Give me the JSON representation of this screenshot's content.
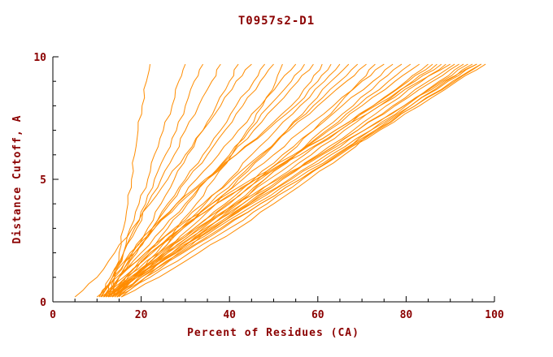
{
  "colors": {
    "curve": "#ff8c00",
    "text": "#8b0000",
    "axis": "#000000",
    "background": "#ffffff"
  },
  "chart_data": {
    "type": "line",
    "title": "T0957s2-D1",
    "xlabel": "Percent of Residues (CA)",
    "ylabel": "Distance Cutoff, A",
    "xlim": [
      0,
      100
    ],
    "ylim": [
      0,
      10
    ],
    "x_major_ticks": [
      0,
      20,
      40,
      60,
      80,
      100
    ],
    "y_major_ticks": [
      0,
      5,
      10
    ],
    "x_minor_step": 5,
    "y_minor_step": 1,
    "legend": "none",
    "grid": false,
    "y_grid": [
      0.2,
      1,
      2,
      3,
      4,
      5,
      6,
      7,
      8,
      9,
      9.7
    ],
    "series": [
      [
        13.2,
        14,
        15,
        16,
        17,
        17.8,
        18.5,
        19.3,
        20.2,
        21.2,
        22
      ],
      [
        12.5,
        14,
        16,
        17.5,
        19.5,
        21.5,
        23,
        25,
        27,
        28.5,
        30
      ],
      [
        11.7,
        13.5,
        16,
        18.5,
        21,
        23,
        25.5,
        28,
        30,
        32,
        34
      ],
      [
        10.8,
        13,
        16,
        19,
        21.5,
        24.5,
        27.5,
        30,
        33,
        36,
        38
      ],
      [
        12.8,
        15,
        18,
        21.5,
        24.5,
        27.5,
        30.5,
        34,
        37,
        40,
        42
      ],
      [
        5,
        10,
        14,
        18,
        22,
        26,
        30,
        34,
        38,
        41.5,
        45
      ],
      [
        12,
        15,
        19,
        22.5,
        26,
        30,
        34,
        38,
        41.5,
        45.5,
        48
      ],
      [
        11,
        14,
        18,
        22.5,
        26.5,
        30.5,
        35,
        39,
        43,
        47,
        50
      ],
      [
        14,
        18.5,
        23.5,
        28,
        32.5,
        36.5,
        40.5,
        44,
        47.5,
        50.5,
        52
      ],
      [
        10.5,
        13.5,
        18.5,
        23,
        28,
        32.5,
        37.5,
        42,
        47,
        51.5,
        55
      ],
      [
        13.5,
        16.5,
        21.5,
        26,
        30.5,
        35,
        40,
        44.5,
        49,
        54,
        57
      ],
      [
        11.5,
        15,
        20,
        25,
        30,
        35,
        40.5,
        45.5,
        50.5,
        55.5,
        59
      ],
      [
        12.5,
        15,
        18.5,
        23,
        28.5,
        35,
        41.5,
        48,
        54,
        58.5,
        61
      ],
      [
        10.5,
        13.5,
        17.5,
        22.5,
        28,
        34.5,
        41.5,
        48.5,
        55,
        60,
        63
      ],
      [
        14.5,
        18.5,
        24,
        29,
        34.5,
        40,
        45,
        50.5,
        56,
        61.5,
        65
      ],
      [
        12,
        18,
        25,
        31,
        37,
        42,
        48,
        53,
        58,
        63,
        67
      ],
      [
        14,
        18,
        24,
        29.5,
        35.5,
        41.5,
        47.5,
        53,
        59,
        65,
        69
      ],
      [
        10,
        14.5,
        21,
        27.5,
        34,
        40.5,
        47,
        53.5,
        60,
        66.5,
        71
      ],
      [
        13,
        19,
        26,
        33,
        40,
        46.5,
        53,
        59,
        64.5,
        69.5,
        73
      ],
      [
        11,
        16,
        22.5,
        29.5,
        36,
        43,
        50,
        56.5,
        63.5,
        70,
        75
      ],
      [
        14,
        19,
        25.5,
        32,
        39,
        45.5,
        52,
        59,
        65.5,
        72.5,
        77
      ],
      [
        12,
        19,
        28,
        35,
        42,
        48,
        55,
        61,
        68,
        74,
        79
      ],
      [
        15,
        20,
        27,
        34,
        41,
        48,
        55,
        62,
        69,
        76,
        81
      ],
      [
        11.5,
        16.5,
        24,
        32,
        39.5,
        47,
        55,
        62.5,
        70,
        77.5,
        83
      ],
      [
        13.5,
        17,
        22,
        29,
        37,
        46,
        55,
        64,
        72.5,
        80,
        85
      ],
      [
        12.5,
        18,
        25.5,
        33.5,
        41.5,
        49,
        57,
        65,
        72.5,
        80.5,
        86
      ],
      [
        14.5,
        19.5,
        27.5,
        35,
        43,
        50.5,
        58.5,
        66,
        74,
        81.5,
        87
      ],
      [
        11.5,
        15,
        21,
        28,
        36,
        45,
        54.5,
        64,
        73,
        82,
        88
      ],
      [
        15.5,
        21,
        28.5,
        36.5,
        44.5,
        52,
        60,
        68,
        75.5,
        83.5,
        89
      ],
      [
        12.5,
        16.5,
        22,
        29,
        37,
        46,
        56,
        65,
        74,
        83,
        90
      ],
      [
        13.5,
        19,
        27.5,
        35.5,
        44,
        52,
        60.5,
        69,
        77,
        85,
        91
      ],
      [
        11.5,
        17.5,
        26,
        34.5,
        43,
        51.5,
        60.5,
        69,
        77.5,
        86,
        92
      ],
      [
        14.5,
        22,
        31,
        40,
        48.5,
        56.5,
        64.5,
        72,
        80,
        87.5,
        93
      ],
      [
        12.5,
        18.5,
        27.5,
        36,
        44.5,
        53.5,
        62,
        70.5,
        79.5,
        88,
        94
      ],
      [
        15.5,
        24,
        33,
        42,
        50,
        58,
        66,
        73,
        81,
        89,
        95
      ],
      [
        11.5,
        18,
        27,
        36,
        45,
        54,
        63,
        72,
        81,
        89.5,
        96
      ],
      [
        13.5,
        18,
        24.5,
        32.5,
        41.5,
        51,
        61,
        70.5,
        79.5,
        88.5,
        96
      ],
      [
        12.5,
        19,
        28,
        37,
        46,
        55,
        64,
        73,
        82,
        90.5,
        97
      ],
      [
        14.5,
        21,
        29.5,
        38.5,
        47,
        56,
        64.5,
        73.5,
        82,
        91,
        97
      ],
      [
        13.5,
        20,
        29,
        38,
        47,
        56,
        65,
        74,
        83,
        91.5,
        98
      ]
    ]
  }
}
